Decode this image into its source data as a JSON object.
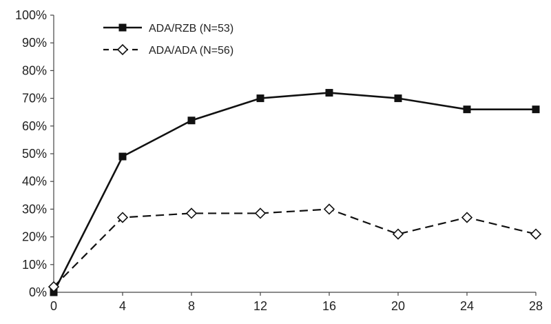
{
  "chart_data": {
    "type": "line",
    "title": "",
    "xlabel": "",
    "ylabel": "",
    "x": [
      0,
      4,
      8,
      12,
      16,
      20,
      24,
      28
    ],
    "xlim": [
      0,
      28
    ],
    "ylim": [
      0,
      100
    ],
    "x_ticks": [
      "0",
      "4",
      "8",
      "12",
      "16",
      "20",
      "24",
      "28"
    ],
    "y_ticks": [
      "0%",
      "10%",
      "20%",
      "30%",
      "40%",
      "50%",
      "60%",
      "70%",
      "80%",
      "90%",
      "100%"
    ],
    "grid": false,
    "legend_position": "top-left",
    "series": [
      {
        "name": "ADA/RZB (N=53)",
        "values": [
          0,
          49,
          62,
          70,
          72,
          70,
          66,
          66
        ],
        "line_style": "solid",
        "marker": "square-filled",
        "color": "#111111"
      },
      {
        "name": "ADA/ADA (N=56)",
        "values": [
          2,
          27,
          28.5,
          28.5,
          30,
          21,
          27,
          21
        ],
        "line_style": "dashed",
        "marker": "diamond-open",
        "color": "#111111"
      }
    ]
  }
}
